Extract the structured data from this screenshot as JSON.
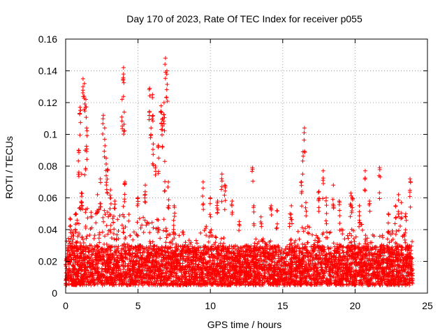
{
  "chart_data": {
    "type": "scatter",
    "title": "Day 170 of 2023, Rate Of TEC Index for receiver p055",
    "xlabel": "GPS time / hours",
    "ylabel": "ROTI / TECUs",
    "xlim": [
      0,
      25
    ],
    "ylim": [
      0,
      0.16
    ],
    "x_ticks": [
      0,
      5,
      10,
      15,
      20,
      25
    ],
    "x_tick_labels": [
      "0",
      "5",
      "10",
      "15",
      "20",
      "25"
    ],
    "y_ticks": [
      0,
      0.02,
      0.04,
      0.06,
      0.08,
      0.1,
      0.12,
      0.14,
      0.16
    ],
    "y_tick_labels": [
      "0",
      "0.02",
      "0.04",
      "0.06",
      "0.08",
      "0.1",
      "0.12",
      "0.14",
      "0.16"
    ],
    "grid": true,
    "marker": "+",
    "marker_color": "#ff0000",
    "data_range_x": [
      0,
      24
    ],
    "baseline_band": {
      "low": 0.005,
      "high": 0.03
    },
    "envelope": [
      {
        "x": 0.0,
        "y": 0.035
      },
      {
        "x": 0.5,
        "y": 0.045
      },
      {
        "x": 1.0,
        "y": 0.06
      },
      {
        "x": 1.5,
        "y": 0.055
      },
      {
        "x": 2.0,
        "y": 0.05
      },
      {
        "x": 2.5,
        "y": 0.055
      },
      {
        "x": 3.0,
        "y": 0.05
      },
      {
        "x": 3.5,
        "y": 0.05
      },
      {
        "x": 4.0,
        "y": 0.055
      },
      {
        "x": 4.5,
        "y": 0.05
      },
      {
        "x": 5.0,
        "y": 0.05
      },
      {
        "x": 5.5,
        "y": 0.05
      },
      {
        "x": 6.0,
        "y": 0.045
      },
      {
        "x": 6.5,
        "y": 0.055
      },
      {
        "x": 7.0,
        "y": 0.045
      },
      {
        "x": 7.5,
        "y": 0.04
      },
      {
        "x": 8.0,
        "y": 0.04
      },
      {
        "x": 8.5,
        "y": 0.035
      },
      {
        "x": 9.0,
        "y": 0.035
      },
      {
        "x": 9.5,
        "y": 0.04
      },
      {
        "x": 10.0,
        "y": 0.045
      },
      {
        "x": 10.5,
        "y": 0.04
      },
      {
        "x": 11.0,
        "y": 0.035
      },
      {
        "x": 11.5,
        "y": 0.03
      },
      {
        "x": 12.0,
        "y": 0.025
      },
      {
        "x": 12.5,
        "y": 0.03
      },
      {
        "x": 13.0,
        "y": 0.035
      },
      {
        "x": 13.5,
        "y": 0.035
      },
      {
        "x": 14.0,
        "y": 0.04
      },
      {
        "x": 14.5,
        "y": 0.03
      },
      {
        "x": 15.0,
        "y": 0.03
      },
      {
        "x": 15.5,
        "y": 0.035
      },
      {
        "x": 16.0,
        "y": 0.04
      },
      {
        "x": 16.5,
        "y": 0.045
      },
      {
        "x": 17.0,
        "y": 0.04
      },
      {
        "x": 17.5,
        "y": 0.035
      },
      {
        "x": 18.0,
        "y": 0.045
      },
      {
        "x": 18.5,
        "y": 0.04
      },
      {
        "x": 19.0,
        "y": 0.04
      },
      {
        "x": 19.5,
        "y": 0.045
      },
      {
        "x": 20.0,
        "y": 0.04
      },
      {
        "x": 20.5,
        "y": 0.045
      },
      {
        "x": 21.0,
        "y": 0.04
      },
      {
        "x": 21.5,
        "y": 0.035
      },
      {
        "x": 22.0,
        "y": 0.04
      },
      {
        "x": 22.5,
        "y": 0.04
      },
      {
        "x": 23.0,
        "y": 0.045
      },
      {
        "x": 23.5,
        "y": 0.04
      },
      {
        "x": 24.0,
        "y": 0.035
      }
    ],
    "spikes": [
      {
        "x": 0.3,
        "y": 0.047
      },
      {
        "x": 0.7,
        "y": 0.05
      },
      {
        "x": 0.9,
        "y": 0.09
      },
      {
        "x": 1.0,
        "y": 0.117
      },
      {
        "x": 1.1,
        "y": 0.075
      },
      {
        "x": 1.2,
        "y": 0.135
      },
      {
        "x": 1.3,
        "y": 0.132
      },
      {
        "x": 1.35,
        "y": 0.09
      },
      {
        "x": 1.4,
        "y": 0.122
      },
      {
        "x": 1.45,
        "y": 0.104
      },
      {
        "x": 2.2,
        "y": 0.062
      },
      {
        "x": 2.4,
        "y": 0.072
      },
      {
        "x": 2.6,
        "y": 0.112
      },
      {
        "x": 2.7,
        "y": 0.104
      },
      {
        "x": 2.8,
        "y": 0.085
      },
      {
        "x": 2.9,
        "y": 0.078
      },
      {
        "x": 3.1,
        "y": 0.065
      },
      {
        "x": 3.4,
        "y": 0.058
      },
      {
        "x": 3.9,
        "y": 0.122
      },
      {
        "x": 4.0,
        "y": 0.142
      },
      {
        "x": 4.05,
        "y": 0.114
      },
      {
        "x": 4.1,
        "y": 0.07
      },
      {
        "x": 5.0,
        "y": 0.06
      },
      {
        "x": 5.5,
        "y": 0.068
      },
      {
        "x": 5.8,
        "y": 0.129
      },
      {
        "x": 5.9,
        "y": 0.104
      },
      {
        "x": 6.0,
        "y": 0.125
      },
      {
        "x": 6.05,
        "y": 0.094
      },
      {
        "x": 6.2,
        "y": 0.08
      },
      {
        "x": 6.4,
        "y": 0.093
      },
      {
        "x": 6.6,
        "y": 0.118
      },
      {
        "x": 6.7,
        "y": 0.11
      },
      {
        "x": 6.8,
        "y": 0.12
      },
      {
        "x": 6.85,
        "y": 0.083
      },
      {
        "x": 6.9,
        "y": 0.148
      },
      {
        "x": 7.0,
        "y": 0.14
      },
      {
        "x": 7.1,
        "y": 0.07
      },
      {
        "x": 7.5,
        "y": 0.055
      },
      {
        "x": 9.5,
        "y": 0.07
      },
      {
        "x": 10.0,
        "y": 0.06
      },
      {
        "x": 10.5,
        "y": 0.058
      },
      {
        "x": 10.8,
        "y": 0.075
      },
      {
        "x": 11.0,
        "y": 0.068
      },
      {
        "x": 11.5,
        "y": 0.058
      },
      {
        "x": 12.0,
        "y": 0.045
      },
      {
        "x": 12.9,
        "y": 0.079
      },
      {
        "x": 13.0,
        "y": 0.055
      },
      {
        "x": 13.5,
        "y": 0.048
      },
      {
        "x": 14.2,
        "y": 0.055
      },
      {
        "x": 14.6,
        "y": 0.052
      },
      {
        "x": 15.5,
        "y": 0.05
      },
      {
        "x": 15.6,
        "y": 0.055
      },
      {
        "x": 16.3,
        "y": 0.07
      },
      {
        "x": 16.4,
        "y": 0.089
      },
      {
        "x": 16.5,
        "y": 0.104
      },
      {
        "x": 16.6,
        "y": 0.057
      },
      {
        "x": 17.5,
        "y": 0.064
      },
      {
        "x": 17.8,
        "y": 0.077
      },
      {
        "x": 18.0,
        "y": 0.06
      },
      {
        "x": 18.5,
        "y": 0.068
      },
      {
        "x": 18.9,
        "y": 0.058
      },
      {
        "x": 19.7,
        "y": 0.063
      },
      {
        "x": 19.8,
        "y": 0.06
      },
      {
        "x": 20.3,
        "y": 0.055
      },
      {
        "x": 20.7,
        "y": 0.077
      },
      {
        "x": 21.0,
        "y": 0.058
      },
      {
        "x": 21.7,
        "y": 0.079
      },
      {
        "x": 22.3,
        "y": 0.05
      },
      {
        "x": 22.8,
        "y": 0.055
      },
      {
        "x": 23.0,
        "y": 0.062
      },
      {
        "x": 23.2,
        "y": 0.057
      },
      {
        "x": 23.5,
        "y": 0.05
      },
      {
        "x": 23.8,
        "y": 0.072
      }
    ]
  }
}
